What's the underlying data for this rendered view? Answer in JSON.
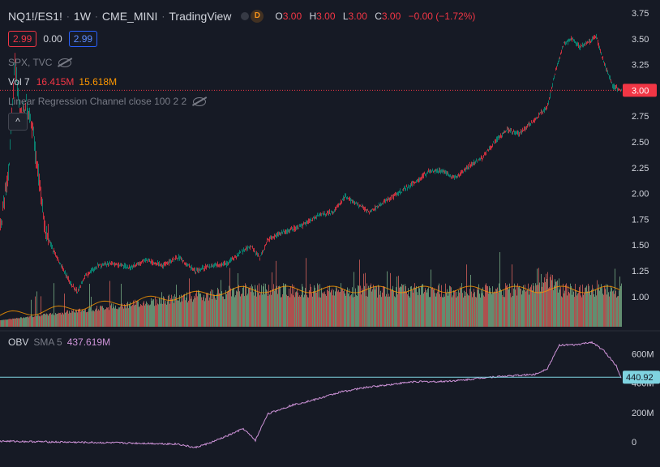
{
  "header": {
    "symbol": "NQ1!/ES1!",
    "interval": "1W",
    "exchange": "CME_MINI",
    "platform": "TradingView",
    "badge": "D",
    "ohlc": {
      "o_label": "O",
      "o": "3.00",
      "h_label": "H",
      "h": "3.00",
      "l_label": "L",
      "l": "3.00",
      "c_label": "C",
      "c": "3.00",
      "change": "−0.00 (−1.72%)"
    },
    "bid": "2.99",
    "spread": "0.00",
    "ask": "2.99"
  },
  "indicators": {
    "spx": "SPX, TVC",
    "vol_label": "Vol 7",
    "vol_value1": "16.415M",
    "vol_value2": "15.618M",
    "lrc": "Linear Regression Channel close 100 2 2",
    "obv_label": "OBV",
    "obv_sma": "SMA 5",
    "obv_value": "437.619M",
    "collapse_glyph": "^"
  },
  "price_axis": {
    "ticks": [
      "3.75",
      "3.50",
      "3.25",
      "3.00",
      "2.75",
      "2.50",
      "2.25",
      "2.00",
      "1.75",
      "1.50",
      "1.25",
      "1.00"
    ],
    "tick_values": [
      3.75,
      3.5,
      3.25,
      3.0,
      2.75,
      2.5,
      2.25,
      2.0,
      1.75,
      1.5,
      1.25,
      1.0
    ],
    "current_price": "3.00",
    "current_value": 3.0
  },
  "obv_axis": {
    "ticks": [
      "600M",
      "400M",
      "200M",
      "0"
    ],
    "tick_values": [
      600,
      400,
      200,
      0
    ],
    "current": "440.92",
    "current_value": 440.92
  },
  "colors": {
    "bg": "#161a25",
    "up": "#089981",
    "down": "#f23645",
    "vol_up": "#7cb48a",
    "vol_down": "#e0645e",
    "vol_ma": "#ff9800",
    "obv": "#ce93d8",
    "obv_line": "#7fd3e0",
    "bid": "#f23645",
    "ask": "#2962ff"
  },
  "chart_data": {
    "type": "line",
    "description_series": "Weekly ratio NQ1!/ES1! with volume and OBV",
    "price_keypoints": [
      [
        0,
        1.67
      ],
      [
        10,
        2.2
      ],
      [
        18,
        3.28
      ],
      [
        25,
        2.7
      ],
      [
        32,
        2.9
      ],
      [
        40,
        2.6
      ],
      [
        48,
        2.1
      ],
      [
        55,
        1.65
      ],
      [
        65,
        1.45
      ],
      [
        75,
        1.3
      ],
      [
        85,
        1.15
      ],
      [
        95,
        1.05
      ],
      [
        105,
        1.2
      ],
      [
        120,
        1.3
      ],
      [
        140,
        1.32
      ],
      [
        160,
        1.28
      ],
      [
        180,
        1.35
      ],
      [
        200,
        1.3
      ],
      [
        220,
        1.38
      ],
      [
        240,
        1.25
      ],
      [
        260,
        1.3
      ],
      [
        280,
        1.32
      ],
      [
        300,
        1.45
      ],
      [
        310,
        1.48
      ],
      [
        320,
        1.38
      ],
      [
        330,
        1.55
      ],
      [
        350,
        1.63
      ],
      [
        370,
        1.68
      ],
      [
        390,
        1.78
      ],
      [
        410,
        1.82
      ],
      [
        425,
        1.97
      ],
      [
        440,
        1.9
      ],
      [
        455,
        1.82
      ],
      [
        470,
        1.9
      ],
      [
        490,
        2.0
      ],
      [
        510,
        2.1
      ],
      [
        530,
        2.22
      ],
      [
        545,
        2.22
      ],
      [
        560,
        2.15
      ],
      [
        575,
        2.25
      ],
      [
        595,
        2.35
      ],
      [
        610,
        2.5
      ],
      [
        625,
        2.62
      ],
      [
        640,
        2.58
      ],
      [
        660,
        2.72
      ],
      [
        675,
        2.85
      ],
      [
        685,
        3.2
      ],
      [
        695,
        3.45
      ],
      [
        705,
        3.5
      ],
      [
        715,
        3.42
      ],
      [
        725,
        3.47
      ],
      [
        735,
        3.52
      ],
      [
        745,
        3.25
      ],
      [
        755,
        3.05
      ],
      [
        765,
        3.0
      ]
    ],
    "obv_keypoints": [
      [
        0,
        5
      ],
      [
        60,
        0
      ],
      [
        120,
        -5
      ],
      [
        180,
        -10
      ],
      [
        220,
        -15
      ],
      [
        240,
        -40
      ],
      [
        260,
        -5
      ],
      [
        280,
        40
      ],
      [
        300,
        90
      ],
      [
        315,
        10
      ],
      [
        330,
        190
      ],
      [
        360,
        250
      ],
      [
        390,
        290
      ],
      [
        420,
        340
      ],
      [
        450,
        370
      ],
      [
        480,
        390
      ],
      [
        510,
        410
      ],
      [
        540,
        410
      ],
      [
        570,
        420
      ],
      [
        600,
        440
      ],
      [
        630,
        450
      ],
      [
        660,
        460
      ],
      [
        675,
        500
      ],
      [
        690,
        660
      ],
      [
        710,
        660
      ],
      [
        730,
        680
      ],
      [
        745,
        620
      ],
      [
        760,
        520
      ],
      [
        766,
        440
      ]
    ],
    "price_ylim": [
      0.8,
      3.8
    ],
    "obv_ylim": [
      -80,
      700
    ]
  }
}
